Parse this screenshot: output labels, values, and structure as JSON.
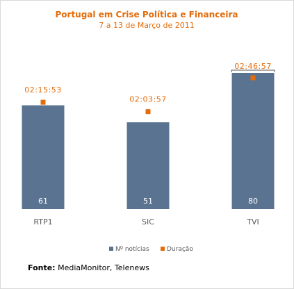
{
  "chart_data": {
    "type": "bar",
    "title": "Portugal em Crise Política e Financeira",
    "subtitle": "7 a 13 de Março de 2011",
    "categories": [
      "RTP1",
      "SIC",
      "TVI"
    ],
    "series": [
      {
        "name": "Nº notícias",
        "values": [
          61,
          51,
          80
        ],
        "color": "#5a7391"
      },
      {
        "name": "Duração",
        "values": [
          "02:15:53",
          "02:03:57",
          "02:46:57"
        ],
        "seconds": [
          8153,
          7437,
          10017
        ],
        "color": "#e46c0a"
      }
    ],
    "ylim": [
      0,
      80
    ],
    "duration_ylim_seconds": [
      0,
      10017
    ],
    "legend_position": "bottom",
    "grid": false
  },
  "source": {
    "label": "Fonte:",
    "text": "MediaMonitor, Telenews"
  }
}
